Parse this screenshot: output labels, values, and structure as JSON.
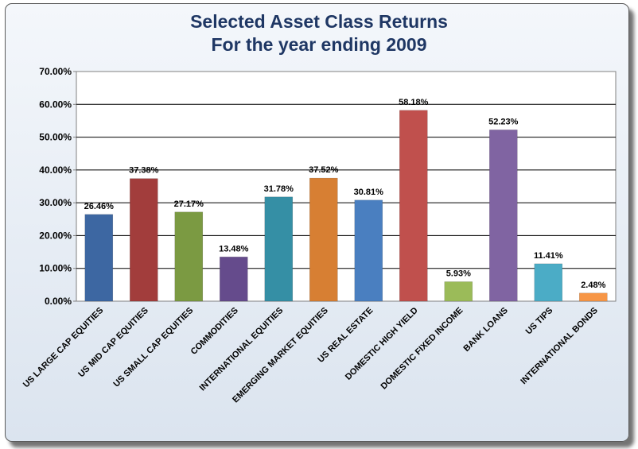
{
  "chart_data": {
    "type": "bar",
    "title": [
      "Selected Asset Class Returns",
      "For the year ending 2009"
    ],
    "xlabel": "",
    "ylabel": "",
    "ylim": [
      0,
      70
    ],
    "ytick_values": [
      0,
      10,
      20,
      30,
      40,
      50,
      60,
      70
    ],
    "ytick_labels": [
      "0.00%",
      "10.00%",
      "20.00%",
      "30.00%",
      "40.00%",
      "50.00%",
      "60.00%",
      "70.00%"
    ],
    "grid": true,
    "legend": "none",
    "categories": [
      "US LARGE CAP EQUITIES",
      "US MID CAP EQUITIES",
      "US SMALL CAP EQUITIES",
      "COMMODITIES",
      "INTERNATIONAL EQUITIES",
      "EMERGING MARKET EQUITIES",
      "US REAL ESTATE",
      "DOMESTIC HIGH YIELD",
      "DOMESTIC FIXED INCOME",
      "BANK LOANS",
      "US TIPS",
      "INTERNATIONAL BONDS"
    ],
    "values": [
      26.46,
      37.38,
      27.17,
      13.48,
      31.78,
      37.52,
      30.81,
      58.18,
      5.93,
      52.23,
      11.41,
      2.48
    ],
    "data_labels": [
      "26.46%",
      "37.38%",
      "27.17%",
      "13.48%",
      "31.78%",
      "37.52%",
      "30.81%",
      "58.18%",
      "5.93%",
      "52.23%",
      "11.41%",
      "2.48%"
    ],
    "colors": [
      "#3d67a2",
      "#a23d3c",
      "#7b9a42",
      "#654b8c",
      "#358fa5",
      "#d77f33",
      "#4a7fc0",
      "#c0504d",
      "#9bbb59",
      "#8064a2",
      "#4bacc6",
      "#f79646"
    ]
  }
}
